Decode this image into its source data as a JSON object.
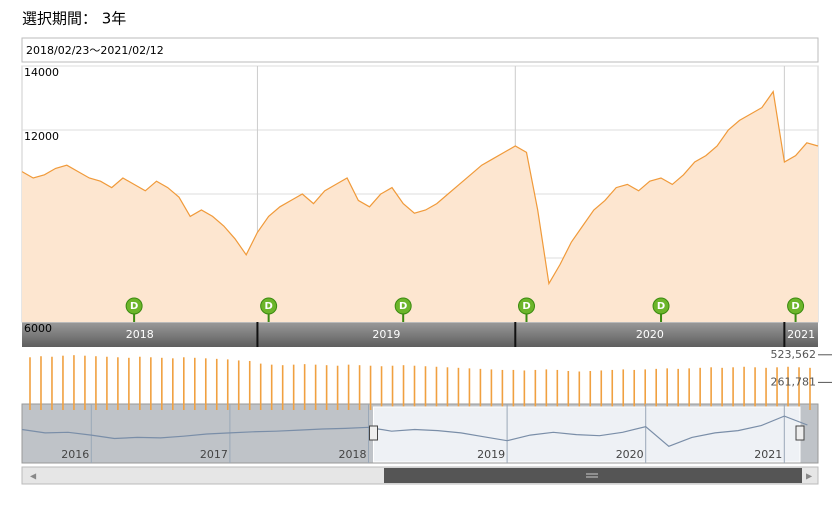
{
  "header": {
    "title": "選択期間： 3年",
    "range": "2018/02/23～2021/02/12"
  },
  "chart_data": [
    {
      "type": "area",
      "color": "#f09a3a",
      "fill": "#fde6d0",
      "grid": true,
      "ylim": [
        6000,
        14000
      ],
      "yticks": [
        6000,
        8000,
        10000,
        12000,
        14000
      ],
      "categories": [
        "2018",
        null,
        null,
        null,
        null,
        null,
        null,
        null,
        null,
        null,
        null,
        null,
        null,
        null,
        null,
        null,
        null,
        null,
        null,
        null,
        null,
        "2019",
        null,
        null,
        null,
        null,
        null,
        null,
        null,
        null,
        null,
        null,
        null,
        null,
        null,
        null,
        null,
        null,
        null,
        null,
        null,
        null,
        null,
        null,
        "2020",
        null,
        null,
        null,
        null,
        null,
        null,
        null,
        null,
        null,
        null,
        null,
        null,
        null,
        null,
        null,
        null,
        null,
        null,
        null,
        null,
        null,
        null,
        null,
        "2021",
        null,
        null,
        null
      ],
      "values": [
        10700,
        10500,
        10600,
        10800,
        10900,
        10700,
        10500,
        10400,
        10200,
        10500,
        10300,
        10100,
        10400,
        10200,
        9900,
        9300,
        9500,
        9300,
        9000,
        8600,
        8100,
        8800,
        9300,
        9600,
        9800,
        10000,
        9700,
        10100,
        10300,
        10500,
        9800,
        9600,
        10000,
        10200,
        9700,
        9400,
        9500,
        9700,
        10000,
        10300,
        10600,
        10900,
        11100,
        11300,
        11500,
        11300,
        9500,
        7200,
        7800,
        8500,
        9000,
        9500,
        9800,
        10200,
        10300,
        10100,
        10400,
        10500,
        10300,
        10600,
        11000,
        11200,
        11500,
        12000,
        12300,
        12500,
        12700,
        13200,
        11000,
        11200,
        11600,
        11500
      ],
      "dividend_markers": {
        "label": "D",
        "at": [
          10,
          22,
          34,
          45,
          57,
          69
        ]
      }
    },
    {
      "type": "bar",
      "color": "#f0a040",
      "ylim": [
        0,
        550000
      ],
      "yticks": [
        {
          "value": 261781,
          "label": "261,781"
        },
        {
          "value": 523562,
          "label": "523,562"
        }
      ],
      "values": [
        500000,
        510000,
        505000,
        515000,
        520000,
        515000,
        510000,
        505000,
        500000,
        495000,
        505000,
        500000,
        495000,
        490000,
        500000,
        495000,
        490000,
        485000,
        480000,
        470000,
        465000,
        440000,
        430000,
        425000,
        430000,
        435000,
        430000,
        425000,
        420000,
        430000,
        425000,
        420000,
        415000,
        420000,
        425000,
        420000,
        415000,
        410000,
        405000,
        400000,
        395000,
        390000,
        385000,
        380000,
        380000,
        375000,
        380000,
        385000,
        380000,
        370000,
        365000,
        370000,
        375000,
        380000,
        385000,
        380000,
        385000,
        390000,
        395000,
        390000,
        395000,
        400000,
        405000,
        400000,
        405000,
        410000,
        405000,
        400000,
        405000,
        410000,
        405000,
        400000
      ]
    },
    {
      "type": "navigator",
      "color": "#7a8ea8",
      "ylim": [
        5000,
        15000
      ],
      "categories": [
        null,
        null,
        null,
        "2016",
        null,
        null,
        null,
        null,
        null,
        "2017",
        null,
        null,
        null,
        null,
        null,
        "2018",
        null,
        null,
        null,
        null,
        null,
        "2019",
        null,
        null,
        null,
        null,
        null,
        "2020",
        null,
        null,
        null,
        null,
        null,
        "2021",
        null
      ],
      "values": [
        10800,
        10200,
        10300,
        9800,
        9200,
        9400,
        9300,
        9600,
        10000,
        10200,
        10400,
        10500,
        10700,
        10900,
        11000,
        11200,
        10500,
        10800,
        10600,
        10200,
        9500,
        8800,
        9800,
        10300,
        9900,
        9700,
        10300,
        11300,
        7800,
        9400,
        10200,
        10600,
        11500,
        13200,
        11600
      ]
    }
  ]
}
